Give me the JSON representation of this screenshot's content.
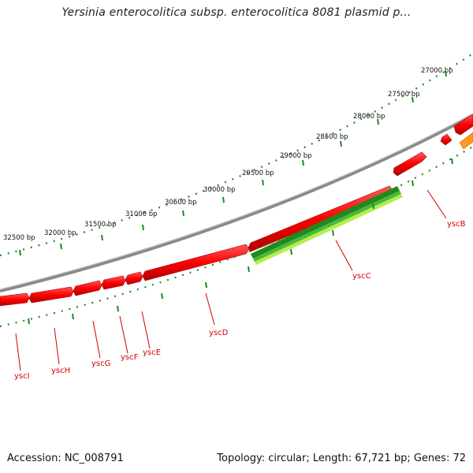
{
  "title": "Yersinia enterocolitica subsp. enterocolitica 8081 plasmid p...",
  "footer": {
    "accession": "Accession: NC_008791",
    "summary": "Topology: circular; Length: 67,721 bp; Genes: 72"
  },
  "colors": {
    "backbone": "#8c8c8c",
    "cds": "#ff0000",
    "cds_dark": "#a00000",
    "rna_dark": "#1f8a1f",
    "rna_light": "#aee84a",
    "orange": "#ff9a1a",
    "tick": "#1e8a1e",
    "label": "#d40000"
  },
  "position_ticks": [
    "27000 bp",
    "27500 bp",
    "28000 bp",
    "28500 bp",
    "29000 bp",
    "29500 bp",
    "30000 bp",
    "30500 bp",
    "31000 bp",
    "31500 bp",
    "32000 bp",
    "32500 bp"
  ],
  "genes": [
    "yscB",
    "yscC",
    "yscD",
    "yscE",
    "yscF",
    "yscG",
    "yscH",
    "yscI"
  ]
}
